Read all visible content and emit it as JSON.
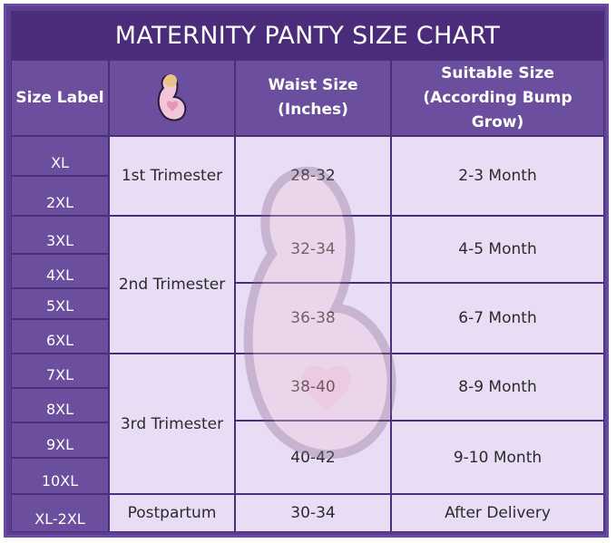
{
  "title": "MATERNITY PANTY SIZE CHART",
  "header": [
    "Size Label",
    "Waist Size (Inches)",
    "Suitable Size (According Bump Grow)"
  ],
  "sizes": [
    "XL",
    "2XL",
    "3XL",
    "4XL",
    "5XL",
    "6XL",
    "7XL",
    "8XL",
    "9XL",
    "10XL",
    "XL-2XL"
  ],
  "groups": [
    {
      "stage": "1st Trimester",
      "rows": [
        {
          "waist": "28-32",
          "suitable": "2-3 Month"
        }
      ]
    },
    {
      "stage": "2nd Trimester",
      "rows": [
        {
          "waist": "32-34",
          "suitable": "4-5 Month"
        },
        {
          "waist": "36-38",
          "suitable": "6-7 Month"
        }
      ]
    },
    {
      "stage": "3rd Trimester",
      "rows": [
        {
          "waist": "38-40",
          "suitable": "8-9 Month"
        },
        {
          "waist": "40-42",
          "suitable": "9-10 Month"
        }
      ]
    },
    {
      "stage": "Postpartum",
      "rows": [
        {
          "waist": "30-34",
          "suitable": "After Delivery"
        }
      ]
    }
  ]
}
